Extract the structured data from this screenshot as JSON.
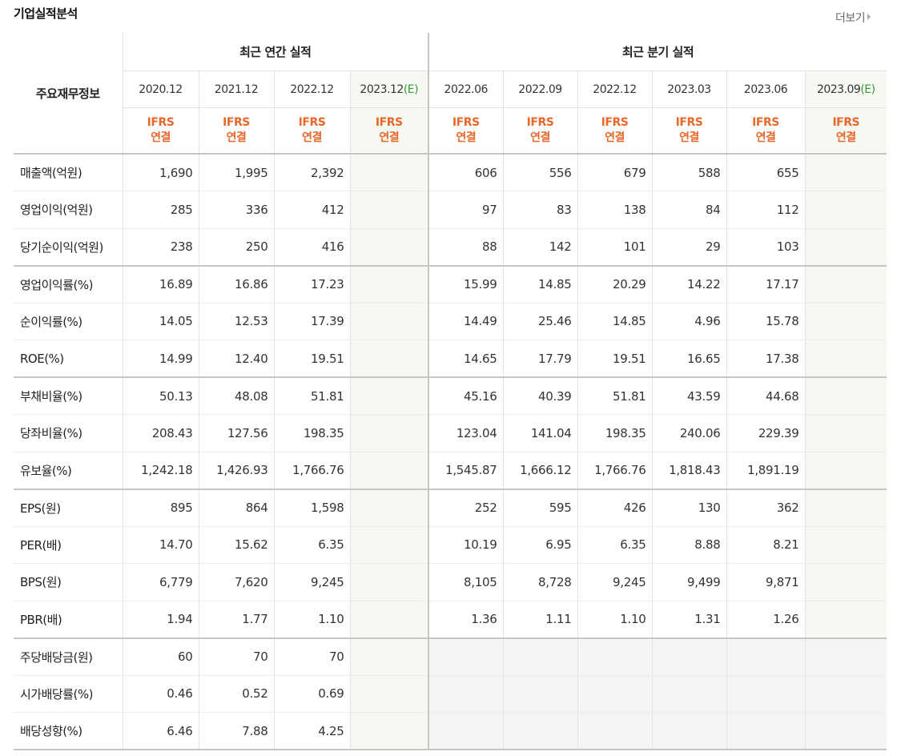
{
  "title": "기업실적분석",
  "more_label": "더보기",
  "header": {
    "row_label": "주요재무정보",
    "group_annual": "최근 연간 실적",
    "group_quarter": "최근 분기 실적",
    "annual_periods": [
      {
        "date": "2020.12",
        "est": ""
      },
      {
        "date": "2021.12",
        "est": ""
      },
      {
        "date": "2022.12",
        "est": ""
      },
      {
        "date": "2023.12",
        "est": "(E)"
      }
    ],
    "quarter_periods": [
      {
        "date": "2022.06",
        "est": ""
      },
      {
        "date": "2022.09",
        "est": ""
      },
      {
        "date": "2022.12",
        "est": ""
      },
      {
        "date": "2023.03",
        "est": ""
      },
      {
        "date": "2023.06",
        "est": ""
      },
      {
        "date": "2023.09",
        "est": "(E)"
      }
    ],
    "ifrs_line1": "IFRS",
    "ifrs_line2": "연결"
  },
  "rows": [
    {
      "label": "매출액(억원)",
      "annual": [
        "1,690",
        "1,995",
        "2,392",
        ""
      ],
      "quarter": [
        "606",
        "556",
        "679",
        "588",
        "655",
        ""
      ]
    },
    {
      "label": "영업이익(억원)",
      "annual": [
        "285",
        "336",
        "412",
        ""
      ],
      "quarter": [
        "97",
        "83",
        "138",
        "84",
        "112",
        ""
      ]
    },
    {
      "label": "당기순이익(억원)",
      "annual": [
        "238",
        "250",
        "416",
        ""
      ],
      "quarter": [
        "88",
        "142",
        "101",
        "29",
        "103",
        ""
      ]
    },
    {
      "label": "영업이익률(%)",
      "annual": [
        "16.89",
        "16.86",
        "17.23",
        ""
      ],
      "quarter": [
        "15.99",
        "14.85",
        "20.29",
        "14.22",
        "17.17",
        ""
      ]
    },
    {
      "label": "순이익률(%)",
      "annual": [
        "14.05",
        "12.53",
        "17.39",
        ""
      ],
      "quarter": [
        "14.49",
        "25.46",
        "14.85",
        "4.96",
        "15.78",
        ""
      ]
    },
    {
      "label": "ROE(%)",
      "annual": [
        "14.99",
        "12.40",
        "19.51",
        ""
      ],
      "quarter": [
        "14.65",
        "17.79",
        "19.51",
        "16.65",
        "17.38",
        ""
      ]
    },
    {
      "label": "부채비율(%)",
      "annual": [
        "50.13",
        "48.08",
        "51.81",
        ""
      ],
      "quarter": [
        "45.16",
        "40.39",
        "51.81",
        "43.59",
        "44.68",
        ""
      ]
    },
    {
      "label": "당좌비율(%)",
      "annual": [
        "208.43",
        "127.56",
        "198.35",
        ""
      ],
      "quarter": [
        "123.04",
        "141.04",
        "198.35",
        "240.06",
        "229.39",
        ""
      ]
    },
    {
      "label": "유보율(%)",
      "annual": [
        "1,242.18",
        "1,426.93",
        "1,766.76",
        ""
      ],
      "quarter": [
        "1,545.87",
        "1,666.12",
        "1,766.76",
        "1,818.43",
        "1,891.19",
        ""
      ]
    },
    {
      "label": "EPS(원)",
      "annual": [
        "895",
        "864",
        "1,598",
        ""
      ],
      "quarter": [
        "252",
        "595",
        "426",
        "130",
        "362",
        ""
      ]
    },
    {
      "label": "PER(배)",
      "annual": [
        "14.70",
        "15.62",
        "6.35",
        ""
      ],
      "quarter": [
        "10.19",
        "6.95",
        "6.35",
        "8.88",
        "8.21",
        ""
      ]
    },
    {
      "label": "BPS(원)",
      "annual": [
        "6,779",
        "7,620",
        "9,245",
        ""
      ],
      "quarter": [
        "8,105",
        "8,728",
        "9,245",
        "9,499",
        "9,871",
        ""
      ]
    },
    {
      "label": "PBR(배)",
      "annual": [
        "1.94",
        "1.77",
        "1.10",
        ""
      ],
      "quarter": [
        "1.36",
        "1.11",
        "1.10",
        "1.31",
        "1.26",
        ""
      ]
    },
    {
      "label": "주당배당금(원)",
      "annual": [
        "60",
        "70",
        "70",
        ""
      ],
      "quarter": [
        "",
        "",
        "",
        "",
        "",
        ""
      ]
    },
    {
      "label": "시가배당률(%)",
      "annual": [
        "0.46",
        "0.52",
        "0.69",
        ""
      ],
      "quarter": [
        "",
        "",
        "",
        "",
        "",
        ""
      ]
    },
    {
      "label": "배당성향(%)",
      "annual": [
        "6.46",
        "7.88",
        "4.25",
        ""
      ],
      "quarter": [
        "",
        "",
        "",
        "",
        "",
        ""
      ]
    }
  ]
}
